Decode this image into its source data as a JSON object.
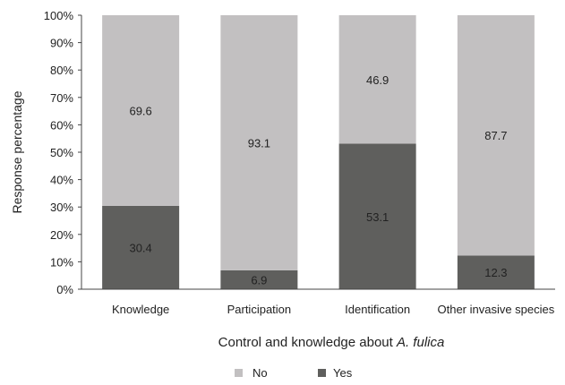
{
  "chart_data": {
    "type": "bar",
    "stacked": true,
    "categories": [
      "Knowledge",
      "Participation",
      "Identification",
      "Other invasive species"
    ],
    "series": [
      {
        "name": "Yes",
        "values": [
          30.4,
          6.9,
          53.1,
          12.3
        ],
        "color": "#5f5f5d"
      },
      {
        "name": "No",
        "values": [
          69.6,
          93.1,
          46.9,
          87.7
        ],
        "color": "#c2c0c1"
      }
    ],
    "ylim": [
      0,
      100
    ],
    "yticks": [
      "0%",
      "10%",
      "20%",
      "30%",
      "40%",
      "50%",
      "60%",
      "70%",
      "80%",
      "90%",
      "100%"
    ],
    "ylabel": "Response percentage",
    "xlabel": {
      "prefix": "Control and knowledge about ",
      "italic": "A. fulica"
    },
    "grid": false,
    "legend": {
      "position": "bottom",
      "items": [
        "No",
        "Yes"
      ]
    }
  }
}
